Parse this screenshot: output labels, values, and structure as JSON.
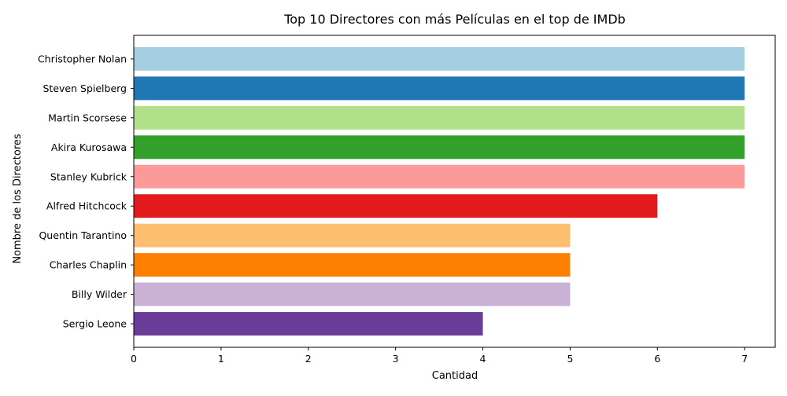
{
  "chart_data": {
    "type": "bar",
    "orientation": "horizontal",
    "title": "Top 10 Directores con más Películas en el top de IMDb",
    "xlabel": "Cantidad",
    "ylabel": "Nombre de los Directores",
    "xlim": [
      0,
      7.35
    ],
    "xticks": [
      "0",
      "1",
      "2",
      "3",
      "4",
      "5",
      "6",
      "7"
    ],
    "grid": false,
    "categories": [
      "Christopher Nolan",
      "Steven Spielberg",
      "Martin Scorsese",
      "Akira Kurosawa",
      "Stanley Kubrick",
      "Alfred Hitchcock",
      "Quentin Tarantino",
      "Charles Chaplin",
      "Billy Wilder",
      "Sergio Leone"
    ],
    "values": [
      7,
      7,
      7,
      7,
      7,
      6,
      5,
      5,
      5,
      4
    ],
    "colors": [
      "#a6cee3",
      "#1f78b4",
      "#b2df8a",
      "#33a02c",
      "#fb9a99",
      "#e31a1c",
      "#fdbf6f",
      "#ff7f00",
      "#cab2d6",
      "#6a3d9a"
    ]
  }
}
